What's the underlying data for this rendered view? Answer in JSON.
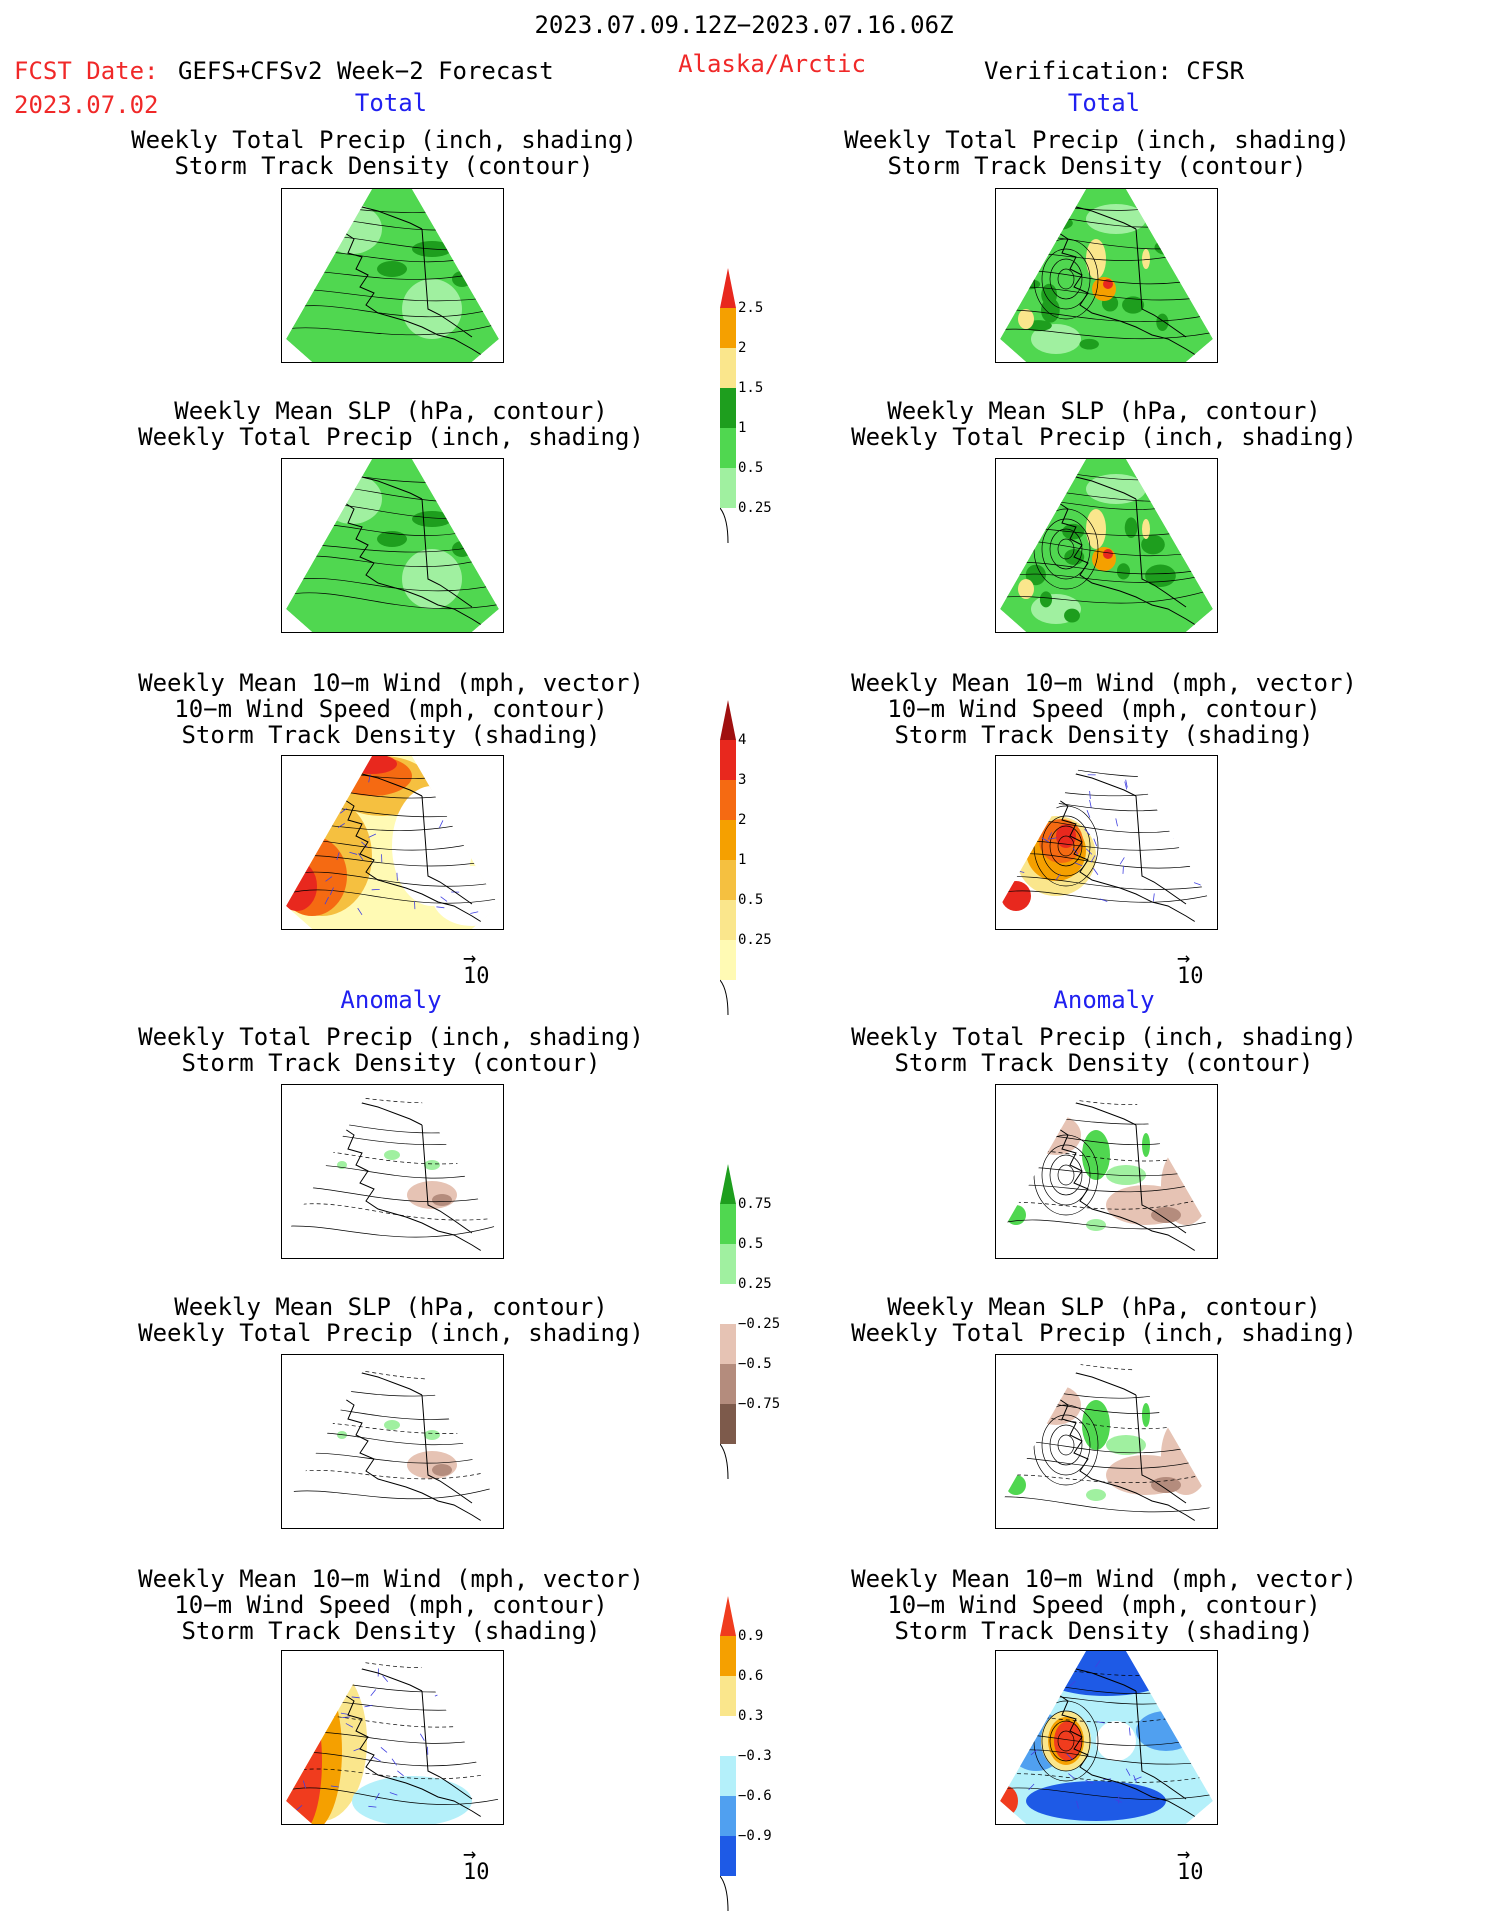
{
  "header": {
    "date_range": "2023.07.09.12Z−2023.07.16.06Z",
    "fcst_label": "FCST Date:",
    "fcst_model": "GEFS+CFSv2 Week−2 Forecast",
    "fcst_date": "2023.07.02",
    "region": "Alaska/Arctic",
    "verification": "Verification: CFSR"
  },
  "sections": {
    "total": "Total",
    "anomaly": "Anomaly"
  },
  "panel_titles": {
    "precip_storm": [
      "Weekly Total Precip (inch, shading)",
      "Storm Track Density (contour)"
    ],
    "slp_precip": [
      "Weekly Mean SLP (hPa, contour)",
      "Weekly Total Precip (inch, shading)"
    ],
    "wind_storm": [
      "Weekly Mean 10−m Wind (mph, vector)",
      "10−m Wind Speed (mph, contour)",
      "Storm Track Density (shading)"
    ]
  },
  "vector_ref": "10",
  "colorbars": {
    "precip_total": {
      "labels": [
        "2.5",
        "2",
        "1.5",
        "1",
        "0.5",
        "0.25"
      ],
      "colors": [
        "#e8281e",
        "#f5a000",
        "#fae68c",
        "#1e9e1e",
        "#50d750",
        "#a0f0a0"
      ]
    },
    "storm_total": {
      "labels": [
        "4",
        "3",
        "2",
        "1",
        "0.5",
        "0.25"
      ],
      "colors": [
        "#a01010",
        "#e8281e",
        "#f56a12",
        "#f5a000",
        "#f5c040",
        "#fae68c",
        "#fffab4"
      ]
    },
    "precip_anom": {
      "labels": [
        "0.75",
        "0.5",
        "0.25",
        "−0.25",
        "−0.5",
        "−0.75"
      ],
      "colors": [
        "#1e9e1e",
        "#50d750",
        "#a0f0a0",
        "#ffffff",
        "#e6c3b4",
        "#b48c7d",
        "#7d5a4b"
      ]
    },
    "storm_anom": {
      "labels": [
        "0.9",
        "0.6",
        "0.3",
        "−0.3",
        "−0.6",
        "−0.9"
      ],
      "colors": [
        "#f03c1e",
        "#f5a000",
        "#fae68c",
        "#ffffff",
        "#b4f0fa",
        "#50a0f0",
        "#1e5ae6"
      ]
    }
  }
}
